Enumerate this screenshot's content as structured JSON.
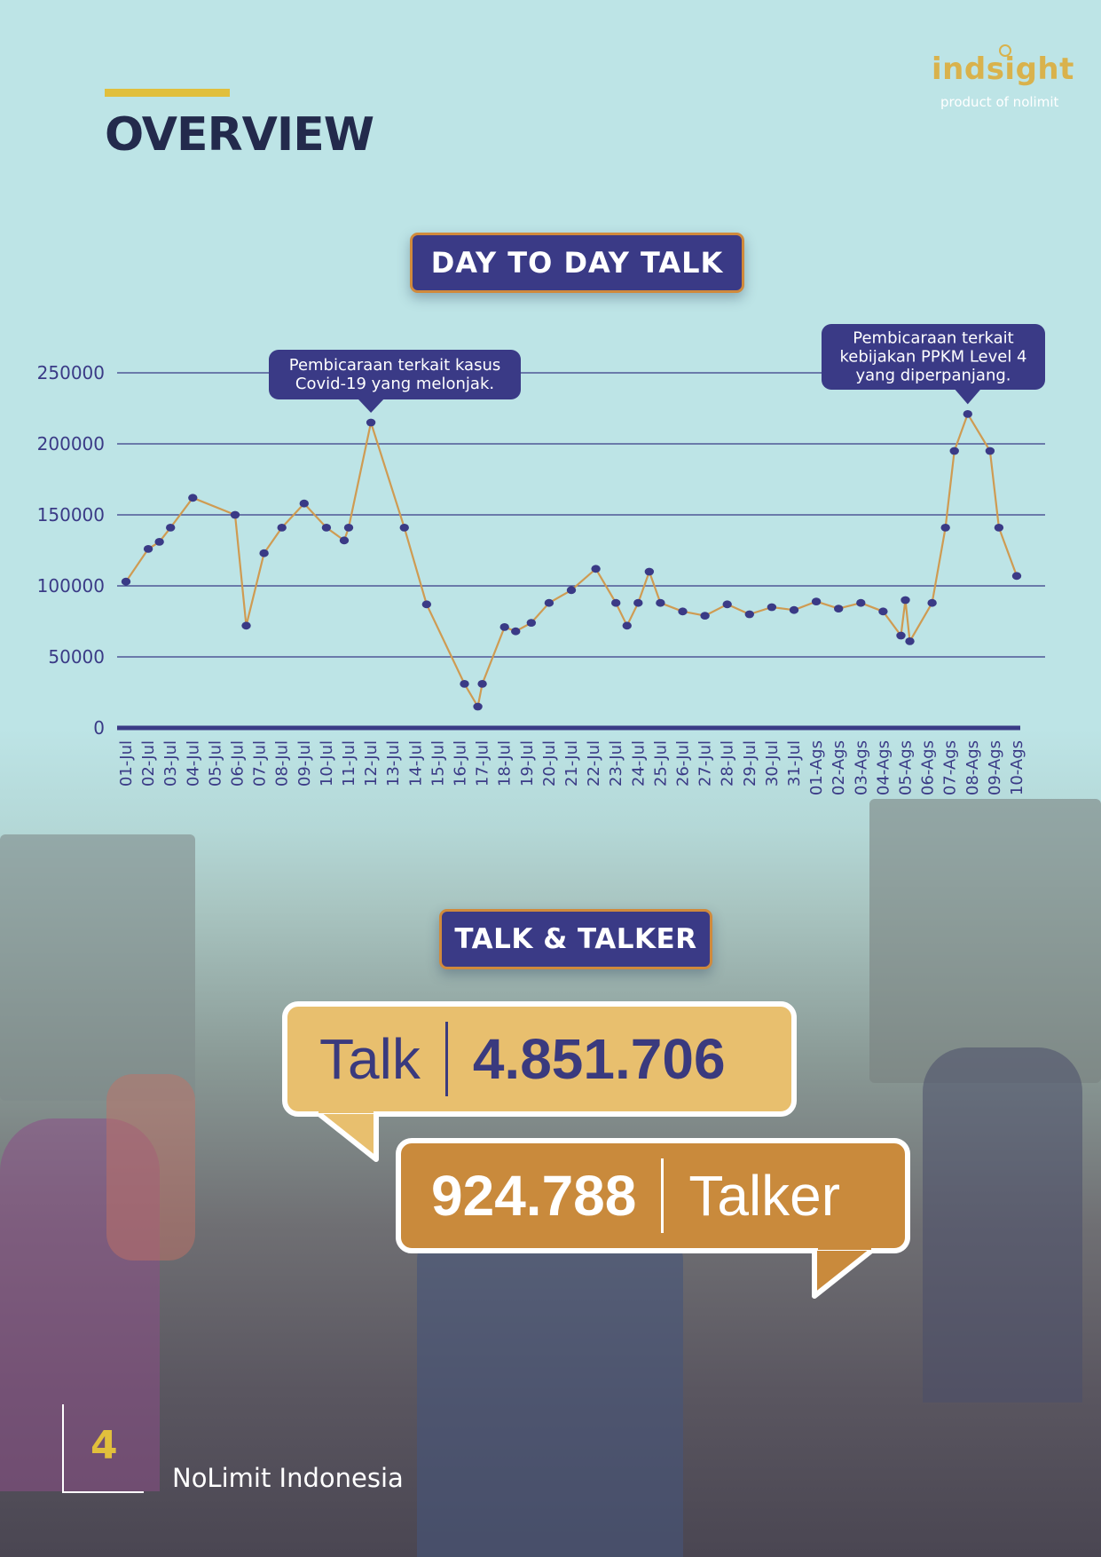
{
  "page": {
    "title": "OVERVIEW",
    "logo_word": "indsight",
    "logo_sub": "product of nolimit",
    "page_number": "4",
    "company": "NoLimit Indonesia"
  },
  "sections": {
    "day_to_day": "DAY TO DAY TALK",
    "talk_talker": "TALK & TALKER"
  },
  "stats": {
    "talk_label": "Talk",
    "talk_value": "4.851.706",
    "talker_label": "Talker",
    "talker_value": "924.788"
  },
  "colors": {
    "line": "#cf9b52",
    "marker": "#3a3a86",
    "grid": "#3a3a86",
    "axis_text": "#3a3a86",
    "callout_bg": "#3a3a86",
    "accent": "#e1bf3c"
  },
  "chart_data": {
    "type": "line",
    "title": "DAY TO DAY TALK",
    "xlabel": "",
    "ylabel": "",
    "ylim": [
      0,
      250000
    ],
    "yticks": [
      0,
      50000,
      100000,
      150000,
      200000,
      250000
    ],
    "grid": true,
    "legend": "none",
    "categories": [
      "01-Jul",
      "02-Jul",
      "03-Jul",
      "04-Jul",
      "05-Jul",
      "06-Jul",
      "07-Jul",
      "08-Jul",
      "09-Jul",
      "10-Jul",
      "11-Jul",
      "12-Jul",
      "13-Jul",
      "14-Jul",
      "15-Jul",
      "16-Jul",
      "17-Jul",
      "18-Jul",
      "19-Jul",
      "20-Jul",
      "21-Jul",
      "22-Jul",
      "23-Jul",
      "24-Jul",
      "25-Jul",
      "26-Jul",
      "27-Jul",
      "28-Jul",
      "29-Jul",
      "30-Jul",
      "31-Jul",
      "01-Ags",
      "02-Ags",
      "03-Ags",
      "04-Ags",
      "05-Ags",
      "06-Ags",
      "07-Ags",
      "08-Ags",
      "09-Ags",
      "10-Ags"
    ],
    "x": [
      0,
      1,
      1.5,
      2,
      3,
      4.9,
      5.4,
      6.2,
      7,
      8,
      9,
      9.8,
      10,
      11,
      12.5,
      13.5,
      15.2,
      15.8,
      16,
      17,
      17.5,
      18.2,
      19,
      20,
      21.1,
      22,
      22.5,
      23,
      23.5,
      24,
      25,
      26,
      27,
      28,
      29,
      30,
      31,
      32,
      33,
      34,
      34.8,
      35,
      35.2,
      36.2,
      36.8,
      37.2,
      37.8,
      38.8,
      39.2,
      40
    ],
    "values": [
      103000,
      126000,
      131000,
      141000,
      162000,
      150000,
      72000,
      123000,
      141000,
      158000,
      141000,
      132000,
      141000,
      215000,
      141000,
      87000,
      31000,
      15000,
      31000,
      71000,
      68000,
      74000,
      88000,
      97000,
      112000,
      88000,
      72000,
      88000,
      110000,
      88000,
      82000,
      79000,
      87000,
      80000,
      85000,
      83000,
      89000,
      84000,
      88000,
      82000,
      65000,
      90000,
      61000,
      88000,
      141000,
      195000,
      221000,
      195000,
      141000,
      107000
    ],
    "annotations": [
      {
        "text": [
          "Pembicaraan terkait kasus",
          "Covid-19 yang melonjak."
        ],
        "point_index": 13
      },
      {
        "text": [
          "Pembicaraan terkait",
          "kebijakan PPKM Level 4",
          "yang diperpanjang."
        ],
        "point_index": 46
      }
    ]
  }
}
